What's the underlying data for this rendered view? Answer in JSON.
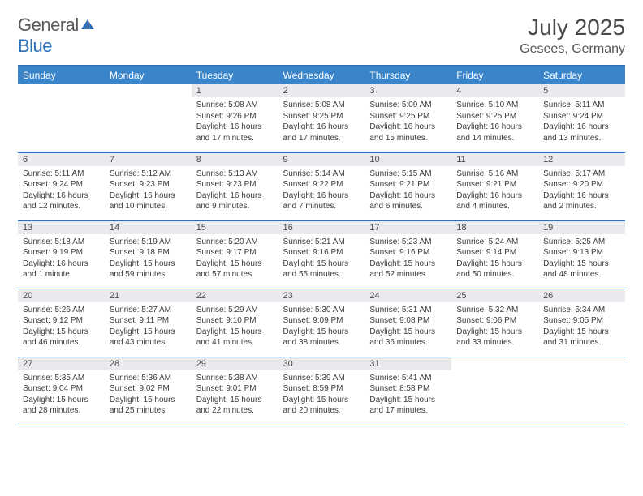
{
  "logo": {
    "textA": "General",
    "textB": "Blue"
  },
  "title": "July 2025",
  "location": "Gesees, Germany",
  "colors": {
    "header_bg": "#3a84c9",
    "border": "#2d6fb8",
    "daynum_bg": "#e8eaed",
    "text": "#3a3a3a"
  },
  "weekdays": [
    "Sunday",
    "Monday",
    "Tuesday",
    "Wednesday",
    "Thursday",
    "Friday",
    "Saturday"
  ],
  "weeks": [
    [
      null,
      null,
      {
        "n": "1",
        "sr": "5:08 AM",
        "ss": "9:26 PM",
        "dl": "16 hours and 17 minutes."
      },
      {
        "n": "2",
        "sr": "5:08 AM",
        "ss": "9:25 PM",
        "dl": "16 hours and 17 minutes."
      },
      {
        "n": "3",
        "sr": "5:09 AM",
        "ss": "9:25 PM",
        "dl": "16 hours and 15 minutes."
      },
      {
        "n": "4",
        "sr": "5:10 AM",
        "ss": "9:25 PM",
        "dl": "16 hours and 14 minutes."
      },
      {
        "n": "5",
        "sr": "5:11 AM",
        "ss": "9:24 PM",
        "dl": "16 hours and 13 minutes."
      }
    ],
    [
      {
        "n": "6",
        "sr": "5:11 AM",
        "ss": "9:24 PM",
        "dl": "16 hours and 12 minutes."
      },
      {
        "n": "7",
        "sr": "5:12 AM",
        "ss": "9:23 PM",
        "dl": "16 hours and 10 minutes."
      },
      {
        "n": "8",
        "sr": "5:13 AM",
        "ss": "9:23 PM",
        "dl": "16 hours and 9 minutes."
      },
      {
        "n": "9",
        "sr": "5:14 AM",
        "ss": "9:22 PM",
        "dl": "16 hours and 7 minutes."
      },
      {
        "n": "10",
        "sr": "5:15 AM",
        "ss": "9:21 PM",
        "dl": "16 hours and 6 minutes."
      },
      {
        "n": "11",
        "sr": "5:16 AM",
        "ss": "9:21 PM",
        "dl": "16 hours and 4 minutes."
      },
      {
        "n": "12",
        "sr": "5:17 AM",
        "ss": "9:20 PM",
        "dl": "16 hours and 2 minutes."
      }
    ],
    [
      {
        "n": "13",
        "sr": "5:18 AM",
        "ss": "9:19 PM",
        "dl": "16 hours and 1 minute."
      },
      {
        "n": "14",
        "sr": "5:19 AM",
        "ss": "9:18 PM",
        "dl": "15 hours and 59 minutes."
      },
      {
        "n": "15",
        "sr": "5:20 AM",
        "ss": "9:17 PM",
        "dl": "15 hours and 57 minutes."
      },
      {
        "n": "16",
        "sr": "5:21 AM",
        "ss": "9:16 PM",
        "dl": "15 hours and 55 minutes."
      },
      {
        "n": "17",
        "sr": "5:23 AM",
        "ss": "9:16 PM",
        "dl": "15 hours and 52 minutes."
      },
      {
        "n": "18",
        "sr": "5:24 AM",
        "ss": "9:14 PM",
        "dl": "15 hours and 50 minutes."
      },
      {
        "n": "19",
        "sr": "5:25 AM",
        "ss": "9:13 PM",
        "dl": "15 hours and 48 minutes."
      }
    ],
    [
      {
        "n": "20",
        "sr": "5:26 AM",
        "ss": "9:12 PM",
        "dl": "15 hours and 46 minutes."
      },
      {
        "n": "21",
        "sr": "5:27 AM",
        "ss": "9:11 PM",
        "dl": "15 hours and 43 minutes."
      },
      {
        "n": "22",
        "sr": "5:29 AM",
        "ss": "9:10 PM",
        "dl": "15 hours and 41 minutes."
      },
      {
        "n": "23",
        "sr": "5:30 AM",
        "ss": "9:09 PM",
        "dl": "15 hours and 38 minutes."
      },
      {
        "n": "24",
        "sr": "5:31 AM",
        "ss": "9:08 PM",
        "dl": "15 hours and 36 minutes."
      },
      {
        "n": "25",
        "sr": "5:32 AM",
        "ss": "9:06 PM",
        "dl": "15 hours and 33 minutes."
      },
      {
        "n": "26",
        "sr": "5:34 AM",
        "ss": "9:05 PM",
        "dl": "15 hours and 31 minutes."
      }
    ],
    [
      {
        "n": "27",
        "sr": "5:35 AM",
        "ss": "9:04 PM",
        "dl": "15 hours and 28 minutes."
      },
      {
        "n": "28",
        "sr": "5:36 AM",
        "ss": "9:02 PM",
        "dl": "15 hours and 25 minutes."
      },
      {
        "n": "29",
        "sr": "5:38 AM",
        "ss": "9:01 PM",
        "dl": "15 hours and 22 minutes."
      },
      {
        "n": "30",
        "sr": "5:39 AM",
        "ss": "8:59 PM",
        "dl": "15 hours and 20 minutes."
      },
      {
        "n": "31",
        "sr": "5:41 AM",
        "ss": "8:58 PM",
        "dl": "15 hours and 17 minutes."
      },
      null,
      null
    ]
  ],
  "labels": {
    "sunrise": "Sunrise:",
    "sunset": "Sunset:",
    "daylight": "Daylight:"
  }
}
